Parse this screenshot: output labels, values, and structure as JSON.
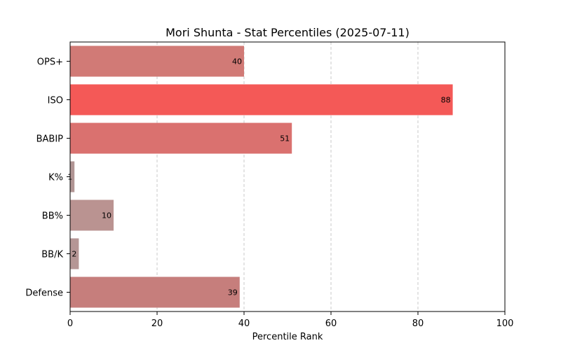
{
  "chart_data": {
    "type": "bar",
    "orientation": "horizontal",
    "title": "Mori Shunta - Stat Percentiles (2025-07-11)",
    "xlabel": "Percentile Rank",
    "ylabel": "",
    "xlim": [
      0,
      100
    ],
    "xticks": [
      0,
      20,
      40,
      60,
      80,
      100
    ],
    "grid": "vertical dashed",
    "categories": [
      "OPS+",
      "ISO",
      "BABIP",
      "K%",
      "BB%",
      "BB/K",
      "Defense"
    ],
    "values": [
      40,
      88,
      51,
      1,
      10,
      2,
      39
    ],
    "value_labels": [
      "40",
      "88",
      "51",
      "1",
      "10",
      "2",
      "39"
    ],
    "colors": [
      "#d17a76",
      "#f45957",
      "#da716f",
      "#b19594",
      "#ba9391",
      "#b59695",
      "#c67e7c"
    ]
  }
}
